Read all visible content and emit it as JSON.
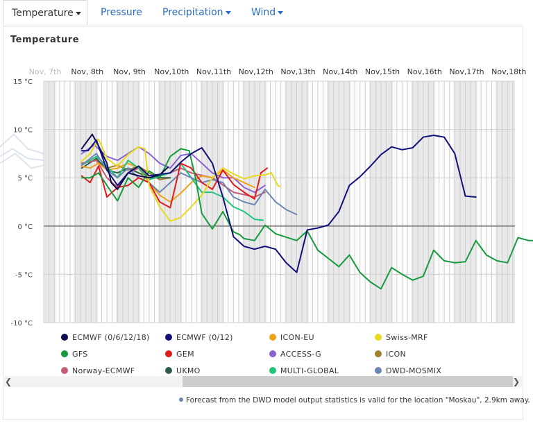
{
  "tabs": [
    {
      "label": "Temperature",
      "active": true,
      "dropdown": true
    },
    {
      "label": "Pressure",
      "active": false,
      "dropdown": false
    },
    {
      "label": "Precipitation",
      "active": false,
      "dropdown": true
    },
    {
      "label": "Wind",
      "active": false,
      "dropdown": true
    }
  ],
  "heading": "Temperature",
  "note": "Forecast from the DWD model output statistics is valid for the location \"Moskau\", 2.9km away.",
  "legend": [
    {
      "name": "ECMWF (0/6/12/18)",
      "color": "#0d0d4f"
    },
    {
      "name": "ECMWF (0/12)",
      "color": "#10107a"
    },
    {
      "name": "ICON-EU",
      "color": "#f0a11c"
    },
    {
      "name": "Swiss-MRF",
      "color": "#e9d81c"
    },
    {
      "name": "GFS",
      "color": "#159a3c"
    },
    {
      "name": "GEM",
      "color": "#e01b1b"
    },
    {
      "name": "ACCESS-G",
      "color": "#8a63d2"
    },
    {
      "name": "ICON",
      "color": "#a3802b"
    },
    {
      "name": "Norway-ECMWF",
      "color": "#c45c72"
    },
    {
      "name": "UKMO",
      "color": "#2e5e4a"
    },
    {
      "name": "MULTI-GLOBAL",
      "color": "#20c47a"
    },
    {
      "name": "DWD-MOSMIX",
      "color": "#6a86b5"
    }
  ],
  "chart_data": {
    "type": "line",
    "title": "Temperature",
    "x_ticks": [
      "Nov, 7th",
      "Nov, 8th",
      "Nov, 9th",
      "Nov,10th",
      "Nov,11th",
      "Nov,12th",
      "Nov,13th",
      "Nov,14th",
      "Nov,15th",
      "Nov,16th",
      "Nov,17th",
      "Nov,18th"
    ],
    "y_ticks": [
      "15 °C",
      "10 °C",
      "5 °C",
      "0 °C",
      "-5 °C",
      "-10 °C"
    ],
    "ylim": [
      -10,
      15
    ],
    "xlim_days": [
      6.9,
      19.1
    ],
    "grid": true,
    "x_unit": "days since Nov 0 (x = day of November)",
    "series": [
      {
        "name": "ECMWF (0/6/12/18)",
        "points": [
          [
            7.9,
            8.0
          ],
          [
            8.05,
            8.9
          ],
          [
            8.15,
            9.5
          ],
          [
            8.3,
            8.3
          ],
          [
            8.5,
            6.5
          ],
          [
            8.6,
            4.5
          ],
          [
            8.75,
            3.8
          ],
          [
            9.0,
            5.5
          ],
          [
            9.25,
            5.2
          ],
          [
            9.5,
            5.0
          ],
          [
            9.75,
            5.3
          ],
          [
            9.95,
            6.1
          ]
        ]
      },
      {
        "name": "ECMWF (0/12)",
        "points": [
          [
            7.9,
            7.8
          ],
          [
            8.05,
            7.8
          ],
          [
            8.25,
            8.9
          ],
          [
            8.5,
            5.8
          ],
          [
            8.75,
            4.2
          ],
          [
            9.0,
            5.5
          ],
          [
            9.25,
            6.2
          ],
          [
            9.5,
            5.2
          ],
          [
            10.0,
            5.5
          ],
          [
            10.25,
            6.6
          ],
          [
            10.5,
            7.5
          ],
          [
            10.75,
            8.1
          ],
          [
            11.0,
            6.5
          ],
          [
            11.25,
            3.0
          ],
          [
            11.5,
            -1.1
          ],
          [
            11.75,
            -2.1
          ],
          [
            12.0,
            -2.4
          ],
          [
            12.25,
            -2.1
          ],
          [
            12.5,
            -2.4
          ],
          [
            12.75,
            -3.8
          ],
          [
            13.0,
            -4.8
          ],
          [
            13.25,
            -0.4
          ],
          [
            13.5,
            -0.2
          ],
          [
            13.75,
            0.1
          ],
          [
            14.0,
            1.5
          ],
          [
            14.25,
            4.2
          ],
          [
            14.5,
            5.1
          ],
          [
            14.75,
            6.2
          ],
          [
            15.0,
            7.4
          ],
          [
            15.25,
            8.2
          ],
          [
            15.5,
            7.9
          ],
          [
            15.75,
            8.1
          ],
          [
            16.0,
            9.2
          ],
          [
            16.25,
            9.4
          ],
          [
            16.5,
            9.2
          ],
          [
            16.75,
            7.5
          ],
          [
            17.0,
            3.1
          ],
          [
            17.25,
            3.0
          ]
        ]
      },
      {
        "name": "ICON-EU",
        "points": [
          [
            7.9,
            6.2
          ],
          [
            8.1,
            6.0
          ],
          [
            8.3,
            6.5
          ],
          [
            8.5,
            5.8
          ],
          [
            8.75,
            6.0
          ],
          [
            9.0,
            6.5
          ],
          [
            9.25,
            6.0
          ],
          [
            9.5,
            4.5
          ],
          [
            9.75,
            3.2
          ],
          [
            10.0,
            2.5
          ],
          [
            10.25,
            3.4
          ],
          [
            10.5,
            4.5
          ],
          [
            10.75,
            5.2
          ],
          [
            11.0,
            5.0
          ],
          [
            11.25,
            5.8
          ],
          [
            11.5,
            5.0
          ],
          [
            11.75,
            4.5
          ],
          [
            12.0,
            4.0
          ]
        ]
      },
      {
        "name": "Swiss-MRF",
        "points": [
          [
            7.9,
            6.7
          ],
          [
            8.1,
            7.5
          ],
          [
            8.3,
            9.0
          ],
          [
            8.5,
            7.0
          ],
          [
            8.75,
            6.2
          ],
          [
            9.0,
            7.4
          ],
          [
            9.25,
            8.2
          ],
          [
            9.4,
            8.0
          ],
          [
            9.5,
            4.2
          ],
          [
            9.75,
            2.0
          ],
          [
            10.0,
            0.5
          ],
          [
            10.25,
            0.9
          ],
          [
            10.5,
            2.0
          ],
          [
            10.75,
            3.2
          ],
          [
            11.0,
            5.0
          ],
          [
            11.25,
            6.0
          ],
          [
            11.5,
            5.4
          ],
          [
            11.75,
            4.9
          ],
          [
            12.0,
            5.2
          ],
          [
            12.25,
            5.3
          ],
          [
            12.4,
            5.5
          ],
          [
            12.55,
            4.2
          ],
          [
            12.6,
            4.1
          ]
        ]
      },
      {
        "name": "GFS",
        "points": [
          [
            7.9,
            5.0
          ],
          [
            8.1,
            5.0
          ],
          [
            8.3,
            5.5
          ],
          [
            8.5,
            4.2
          ],
          [
            8.75,
            2.6
          ],
          [
            9.0,
            5.0
          ],
          [
            9.25,
            4.0
          ],
          [
            9.5,
            5.7
          ],
          [
            9.75,
            5.0
          ],
          [
            10.0,
            7.2
          ],
          [
            10.25,
            8.0
          ],
          [
            10.45,
            7.8
          ],
          [
            10.6,
            5.0
          ],
          [
            10.75,
            1.3
          ],
          [
            11.0,
            -0.3
          ],
          [
            11.25,
            1.5
          ],
          [
            11.5,
            -0.6
          ],
          [
            11.65,
            -0.9
          ],
          [
            11.75,
            -1.3
          ],
          [
            12.0,
            -1.5
          ],
          [
            12.25,
            0.1
          ],
          [
            12.5,
            -0.8
          ],
          [
            13.0,
            -1.5
          ],
          [
            13.25,
            -0.5
          ],
          [
            13.5,
            -2.5
          ],
          [
            14.0,
            -4.2
          ],
          [
            14.25,
            -3.0
          ],
          [
            14.5,
            -4.8
          ],
          [
            14.75,
            -5.8
          ],
          [
            15.0,
            -6.5
          ],
          [
            15.25,
            -4.3
          ],
          [
            15.5,
            -5.0
          ],
          [
            15.75,
            -5.6
          ],
          [
            16.0,
            -5.2
          ],
          [
            16.25,
            -2.5
          ],
          [
            16.5,
            -3.6
          ],
          [
            16.75,
            -3.8
          ],
          [
            17.0,
            -3.7
          ],
          [
            17.25,
            -1.5
          ],
          [
            17.5,
            -3.0
          ],
          [
            17.75,
            -3.6
          ],
          [
            18.0,
            -3.8
          ],
          [
            18.25,
            -1.2
          ],
          [
            18.5,
            -1.5
          ],
          [
            18.75,
            -1.5
          ]
        ]
      },
      {
        "name": "GEM",
        "points": [
          [
            7.9,
            5.2
          ],
          [
            8.1,
            4.5
          ],
          [
            8.3,
            6.2
          ],
          [
            8.5,
            3.0
          ],
          [
            8.75,
            4.0
          ],
          [
            9.0,
            4.2
          ],
          [
            9.25,
            5.0
          ],
          [
            9.5,
            4.5
          ],
          [
            9.75,
            2.5
          ],
          [
            10.0,
            1.9
          ],
          [
            10.25,
            6.5
          ],
          [
            10.5,
            6.0
          ],
          [
            10.75,
            4.5
          ],
          [
            11.0,
            3.8
          ],
          [
            11.25,
            5.8
          ],
          [
            11.5,
            4.3
          ],
          [
            11.75,
            3.5
          ],
          [
            12.0,
            2.8
          ],
          [
            12.15,
            5.5
          ],
          [
            12.3,
            6.0
          ]
        ]
      },
      {
        "name": "ACCESS-G",
        "points": [
          [
            7.9,
            7.5
          ],
          [
            8.2,
            8.4
          ],
          [
            8.5,
            7.2
          ],
          [
            8.75,
            6.8
          ],
          [
            9.0,
            7.5
          ],
          [
            9.25,
            8.2
          ],
          [
            9.5,
            7.5
          ],
          [
            9.75,
            6.5
          ],
          [
            10.0,
            6.0
          ],
          [
            10.25,
            7.3
          ],
          [
            10.5,
            7.5
          ],
          [
            10.75,
            6.5
          ],
          [
            11.0,
            5.5
          ],
          [
            11.25,
            5.0
          ],
          [
            11.5,
            5.0
          ],
          [
            11.75,
            4.0
          ],
          [
            12.0,
            3.5
          ],
          [
            12.25,
            4.2
          ]
        ]
      },
      {
        "name": "ICON",
        "points": [
          [
            7.9,
            6.5
          ],
          [
            8.25,
            6.8
          ],
          [
            8.5,
            6.0
          ],
          [
            8.75,
            6.3
          ],
          [
            9.0,
            5.8
          ],
          [
            9.25,
            6.2
          ],
          [
            9.5,
            5.5
          ],
          [
            9.75,
            4.8
          ],
          [
            10.0,
            5.0
          ]
        ]
      },
      {
        "name": "Norway-ECMWF",
        "points": [
          [
            7.9,
            6.5
          ],
          [
            8.25,
            6.8
          ],
          [
            8.5,
            5.0
          ],
          [
            8.75,
            4.0
          ],
          [
            9.0,
            5.5
          ],
          [
            9.25,
            6.0
          ],
          [
            9.5,
            5.0
          ],
          [
            10.0,
            5.5
          ],
          [
            10.25,
            6.0
          ],
          [
            10.5,
            5.5
          ],
          [
            11.0,
            5.0
          ],
          [
            11.5,
            3.5
          ],
          [
            12.0,
            3.0
          ],
          [
            12.25,
            3.5
          ]
        ]
      },
      {
        "name": "UKMO",
        "points": [
          [
            7.9,
            6.0
          ],
          [
            8.25,
            7.0
          ],
          [
            8.5,
            5.8
          ],
          [
            8.75,
            5.5
          ],
          [
            9.0,
            6.0
          ],
          [
            9.25,
            5.5
          ],
          [
            9.5,
            5.0
          ],
          [
            10.0,
            5.0
          ]
        ]
      },
      {
        "name": "MULTI-GLOBAL",
        "points": [
          [
            7.9,
            6.3
          ],
          [
            8.25,
            7.2
          ],
          [
            8.5,
            6.2
          ],
          [
            8.75,
            5.0
          ],
          [
            9.0,
            6.8
          ],
          [
            9.25,
            6.0
          ],
          [
            9.5,
            4.8
          ],
          [
            10.0,
            5.5
          ],
          [
            10.25,
            6.5
          ],
          [
            10.5,
            5.0
          ],
          [
            10.75,
            3.5
          ],
          [
            11.0,
            3.5
          ],
          [
            11.25,
            3.0
          ],
          [
            11.5,
            2.0
          ],
          [
            11.75,
            1.5
          ],
          [
            12.0,
            0.7
          ],
          [
            12.2,
            0.6
          ]
        ]
      },
      {
        "name": "DWD-MOSMIX",
        "points": [
          [
            7.9,
            6.3
          ],
          [
            8.25,
            7.5
          ],
          [
            8.5,
            5.8
          ],
          [
            8.75,
            5.0
          ],
          [
            9.0,
            6.0
          ],
          [
            9.25,
            5.0
          ],
          [
            9.5,
            4.5
          ],
          [
            9.75,
            3.5
          ],
          [
            10.0,
            4.5
          ],
          [
            10.25,
            5.5
          ],
          [
            10.5,
            5.0
          ],
          [
            10.75,
            4.5
          ],
          [
            11.0,
            4.8
          ],
          [
            11.25,
            4.5
          ],
          [
            11.5,
            3.0
          ],
          [
            11.75,
            2.5
          ],
          [
            12.0,
            2.2
          ],
          [
            12.25,
            3.8
          ],
          [
            12.5,
            2.5
          ],
          [
            12.75,
            1.7
          ],
          [
            13.0,
            1.2
          ]
        ]
      }
    ]
  }
}
